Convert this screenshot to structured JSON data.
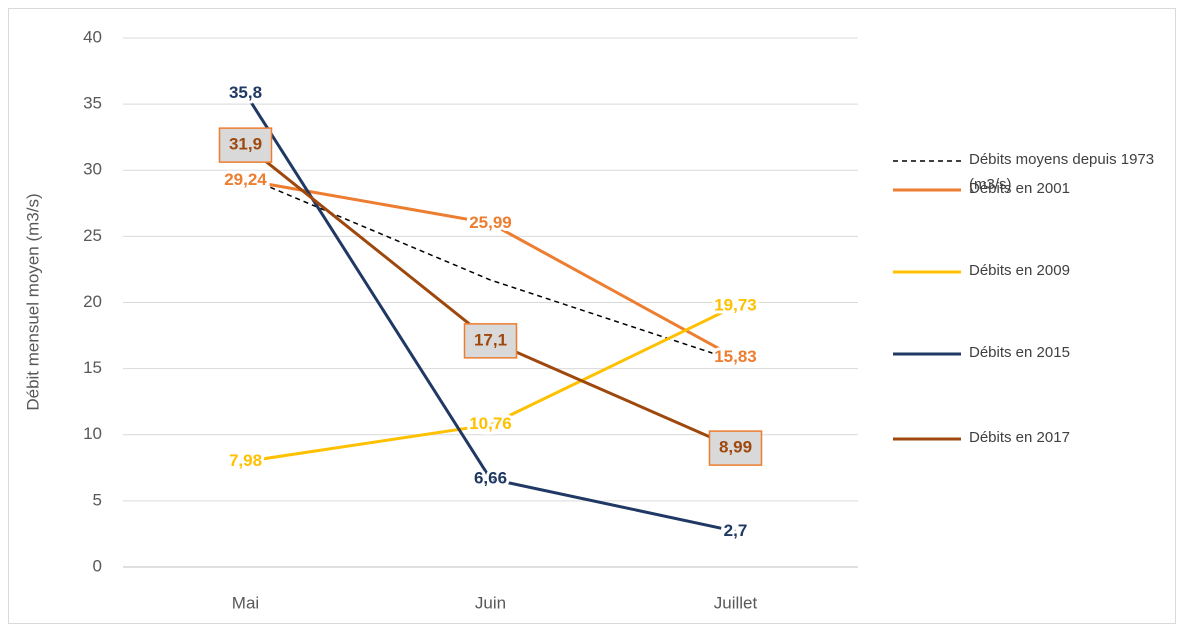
{
  "chart_data": {
    "type": "line",
    "y_label": "Débit mensuel moyen (m3/s)",
    "categories": [
      "Mai",
      "Juin",
      "Juillet"
    ],
    "ylim": [
      0,
      40
    ],
    "yticks": [
      0,
      5,
      10,
      15,
      20,
      25,
      30,
      35,
      40
    ],
    "grid": true,
    "legend": "right",
    "series": [
      {
        "name": "Débits moyens depuis 1973 (m3/s)",
        "color": "#000000",
        "line_style": "dashed",
        "values": [
          29.5,
          21.7,
          15.6
        ]
      },
      {
        "name": "Débits en 2001",
        "color": "#ed7d31",
        "values": [
          29.24,
          25.99,
          15.83
        ],
        "value_labels": [
          "29,24",
          "25,99",
          "15,83"
        ]
      },
      {
        "name": "Débits en 2009",
        "color": "#ffc000",
        "values": [
          7.98,
          10.76,
          19.73
        ],
        "value_labels": [
          "7,98",
          "10,76",
          "19,73"
        ]
      },
      {
        "name": "Débits en 2015",
        "color": "#203864",
        "values": [
          35.8,
          6.66,
          2.7
        ],
        "value_labels": [
          "35,8",
          "6,66",
          "2,7"
        ]
      },
      {
        "name": "Débits en 2017",
        "color": "#9e480e",
        "values": [
          31.9,
          17.1,
          8.99
        ],
        "value_labels": [
          "31,9",
          "17,1",
          "8,99"
        ],
        "label_box": true
      }
    ]
  }
}
